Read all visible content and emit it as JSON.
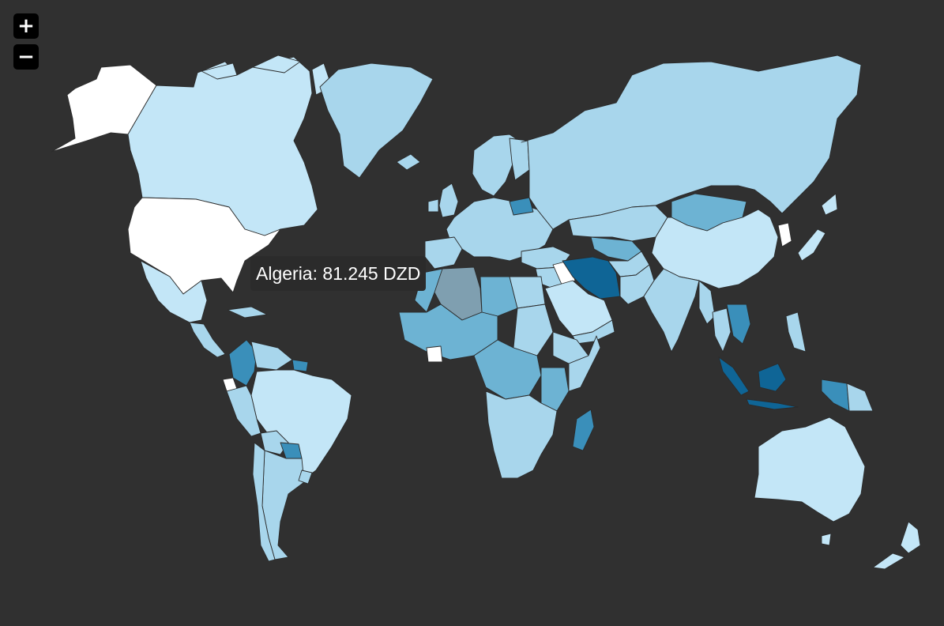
{
  "zoom_controls": {
    "zoom_in": "+",
    "zoom_out": "−"
  },
  "tooltip": {
    "country": "Algeria",
    "value": "81.245",
    "currency": "DZD",
    "text": "Algeria: 81.245 DZD"
  },
  "legend": {
    "color_scale": [
      "#ffffff",
      "#c3e6f7",
      "#a8d6ec",
      "#6db3d3",
      "#3a8fba",
      "#0f6596"
    ],
    "hover_color": "#7f9fb0"
  },
  "background_color": "#303030"
}
